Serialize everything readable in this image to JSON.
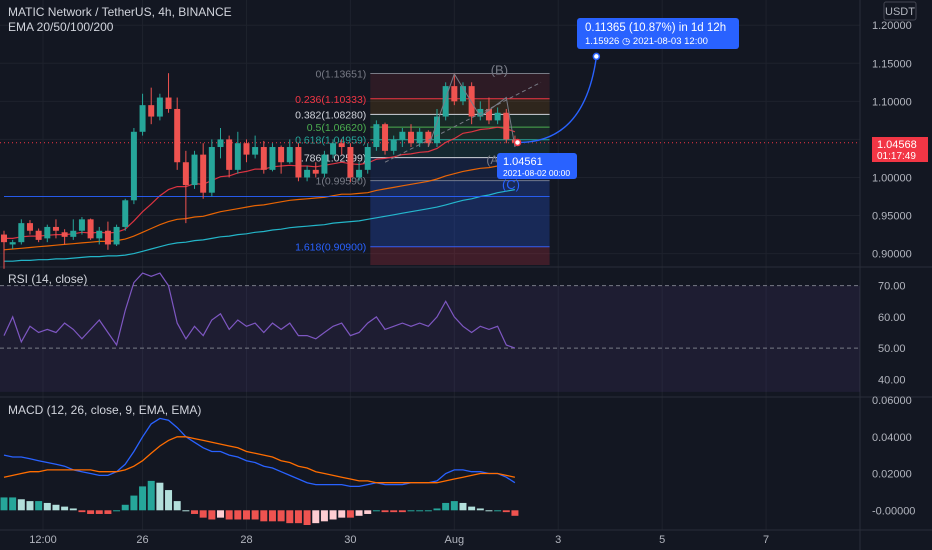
{
  "header": {
    "title": "MATIC Network / TetherUS, 4h, BINANCE",
    "indicator": "EMA 20/50/100/200"
  },
  "price_scale": {
    "currency": "USDT",
    "last_price": "1.04568",
    "countdown": "01:17:49"
  },
  "measure_box": {
    "line1": "0.11365 (10.87%) in 1d 12h",
    "line2": "1.15926 ◷ 2021-08-03  12:00"
  },
  "cursor_label": {
    "price": "1.04561",
    "time": "2021-08-02 00:00"
  },
  "wave_labels": {
    "b": "(B)",
    "c": "(C)",
    "a": "(A"
  },
  "fib_levels": [
    {
      "label": "0(1.13651)",
      "value": 1.13651,
      "color": "#787b86"
    },
    {
      "label": "0.236(1.10333)",
      "value": 1.10333,
      "color": "#f23645"
    },
    {
      "label": "0.382(1.08280)",
      "value": 1.0828,
      "color": "#d1d4dc"
    },
    {
      "label": "0.5(1.06620)",
      "value": 1.0662,
      "color": "#4caf50"
    },
    {
      "label": "0.618(1.04959)",
      "value": 1.04959,
      "color": "#26a69a"
    },
    {
      "label": "0.786(1.02599)",
      "value": 1.02599,
      "color": "#d1d4dc"
    },
    {
      "label": "1(0.99590)",
      "value": 0.9959,
      "color": "#787b86"
    },
    {
      "label": "1.618(0.90900)",
      "value": 0.909,
      "color": "#2962ff"
    }
  ],
  "rsi_panel": {
    "label": "RSI (14, close)",
    "ticks": [
      "70.00",
      "60.00",
      "50.00",
      "40.00"
    ]
  },
  "macd_panel": {
    "label": "MACD (12, 26, close, 9, EMA, EMA)",
    "ticks": [
      "0.06000",
      "0.04000",
      "0.02000",
      "-0.00000"
    ]
  },
  "time_axis": {
    "labels": [
      "12:00",
      "26",
      "28",
      "30",
      "Aug",
      "3",
      "5",
      "7"
    ]
  },
  "colors": {
    "background": "#131722",
    "up": "#26a69a",
    "down": "#ef5350",
    "ema20": "#f23645",
    "ema50": "#ff6d00",
    "ema100": "#26c6da",
    "ema200": "#2962ff",
    "rsi": "#7e57c2",
    "macd": "#2962ff",
    "signal": "#ff6d00"
  },
  "chart_data": {
    "type": "line",
    "title": "MATIC Network / TetherUS, 4h, BINANCE",
    "ylim": [
      0.885,
      1.22
    ],
    "y_ticks": [
      0.9,
      0.95,
      1.0,
      1.05,
      1.1,
      1.15,
      1.2
    ],
    "x_tick_labels": [
      "12:00",
      "26",
      "28",
      "30",
      "Aug",
      "3",
      "5",
      "7"
    ],
    "x_tick_bars": [
      4.5,
      16,
      28,
      40,
      52,
      64,
      76,
      88
    ],
    "candles": [
      [
        0.925,
        0.915,
        0.93,
        0.88
      ],
      [
        0.912,
        0.915,
        0.918,
        0.906
      ],
      [
        0.915,
        0.94,
        0.945,
        0.912
      ],
      [
        0.94,
        0.93,
        0.944,
        0.925
      ],
      [
        0.93,
        0.918,
        0.933,
        0.915
      ],
      [
        0.92,
        0.935,
        0.938,
        0.915
      ],
      [
        0.935,
        0.93,
        0.945,
        0.92
      ],
      [
        0.928,
        0.922,
        0.932,
        0.912
      ],
      [
        0.922,
        0.93,
        0.945,
        0.918
      ],
      [
        0.93,
        0.945,
        0.948,
        0.925
      ],
      [
        0.945,
        0.92,
        0.946,
        0.918
      ],
      [
        0.92,
        0.93,
        0.935,
        0.912
      ],
      [
        0.93,
        0.912,
        0.942,
        0.905
      ],
      [
        0.912,
        0.935,
        0.938,
        0.91
      ],
      [
        0.935,
        0.97,
        0.972,
        0.93
      ],
      [
        0.97,
        1.06,
        1.065,
        0.965
      ],
      [
        1.06,
        1.095,
        1.11,
        1.055
      ],
      [
        1.095,
        1.08,
        1.118,
        1.07
      ],
      [
        1.08,
        1.105,
        1.11,
        1.075
      ],
      [
        1.105,
        1.09,
        1.137,
        1.085
      ],
      [
        1.09,
        1.02,
        1.105,
        1.01
      ],
      [
        1.02,
        0.99,
        1.035,
        0.94
      ],
      [
        0.99,
        1.03,
        1.035,
        0.985
      ],
      [
        1.03,
        0.98,
        1.045,
        0.972
      ],
      [
        0.98,
        1.04,
        1.05,
        0.975
      ],
      [
        1.04,
        1.05,
        1.065,
        1.025
      ],
      [
        1.05,
        1.01,
        1.055,
        1.0
      ],
      [
        1.01,
        1.045,
        1.06,
        1.005
      ],
      [
        1.045,
        1.03,
        1.05,
        1.02
      ],
      [
        1.03,
        1.04,
        1.055,
        1.025
      ],
      [
        1.04,
        1.01,
        1.048,
        1.005
      ],
      [
        1.01,
        1.04,
        1.045,
        1.008
      ],
      [
        1.04,
        1.02,
        1.042,
        1.005
      ],
      [
        1.02,
        1.04,
        1.05,
        1.018
      ],
      [
        1.04,
        1.0,
        1.045,
        0.995
      ],
      [
        1.0,
        1.01,
        1.015,
        0.995
      ],
      [
        1.01,
        1.005,
        1.02,
        1.0
      ],
      [
        1.005,
        1.03,
        1.035,
        1.0
      ],
      [
        1.03,
        1.045,
        1.05,
        1.025
      ],
      [
        1.045,
        1.04,
        1.05,
        1.03
      ],
      [
        1.04,
        1.0,
        1.045,
        0.994
      ],
      [
        1.0,
        1.01,
        1.02,
        0.996
      ],
      [
        1.01,
        1.04,
        1.045,
        1.005
      ],
      [
        1.04,
        1.07,
        1.075,
        1.035
      ],
      [
        1.07,
        1.035,
        1.072,
        1.03
      ],
      [
        1.035,
        1.05,
        1.055,
        1.03
      ],
      [
        1.05,
        1.06,
        1.065,
        1.04
      ],
      [
        1.06,
        1.045,
        1.07,
        1.04
      ],
      [
        1.045,
        1.06,
        1.065,
        1.04
      ],
      [
        1.06,
        1.045,
        1.062,
        1.04
      ],
      [
        1.045,
        1.08,
        1.09,
        1.04
      ],
      [
        1.08,
        1.12,
        1.125,
        1.075
      ],
      [
        1.12,
        1.1,
        1.137,
        1.095
      ],
      [
        1.1,
        1.12,
        1.125,
        1.095
      ],
      [
        1.12,
        1.08,
        1.125,
        1.07
      ],
      [
        1.08,
        1.09,
        1.1,
        1.075
      ],
      [
        1.09,
        1.075,
        1.105,
        1.07
      ],
      [
        1.075,
        1.085,
        1.092,
        1.07
      ],
      [
        1.085,
        1.05,
        1.09,
        1.045
      ],
      [
        1.05,
        1.04568,
        1.055,
        1.04
      ]
    ],
    "series": [
      {
        "name": "EMA 20",
        "values": [
          0.92,
          0.92,
          0.922,
          0.923,
          0.923,
          0.924,
          0.925,
          0.925,
          0.926,
          0.928,
          0.927,
          0.928,
          0.927,
          0.928,
          0.932,
          0.943,
          0.955,
          0.965,
          0.976,
          0.984,
          0.988,
          0.988,
          0.992,
          0.991,
          0.996,
          1.001,
          1.002,
          1.006,
          1.008,
          1.011,
          1.011,
          1.014,
          1.015,
          1.016,
          1.015,
          1.015,
          1.014,
          1.016,
          1.018,
          1.02,
          1.018,
          1.017,
          1.019,
          1.024,
          1.025,
          1.027,
          1.03,
          1.031,
          1.033,
          1.034,
          1.038,
          1.046,
          1.051,
          1.058,
          1.06,
          1.063,
          1.064,
          1.066,
          1.064,
          1.06
        ]
      },
      {
        "name": "EMA 50",
        "values": [
          0.905,
          0.906,
          0.907,
          0.908,
          0.909,
          0.91,
          0.911,
          0.912,
          0.913,
          0.914,
          0.915,
          0.916,
          0.916,
          0.917,
          0.919,
          0.923,
          0.928,
          0.933,
          0.938,
          0.942,
          0.945,
          0.946,
          0.948,
          0.949,
          0.952,
          0.955,
          0.957,
          0.959,
          0.961,
          0.963,
          0.964,
          0.966,
          0.968,
          0.97,
          0.971,
          0.972,
          0.973,
          0.974,
          0.976,
          0.978,
          0.978,
          0.979,
          0.98,
          0.983,
          0.985,
          0.987,
          0.989,
          0.991,
          0.993,
          0.995,
          0.998,
          1.002,
          1.005,
          1.008,
          1.01,
          1.012,
          1.013,
          1.015,
          1.015,
          1.016
        ]
      },
      {
        "name": "EMA 100",
        "values": [
          0.89,
          0.89,
          0.891,
          0.891,
          0.892,
          0.892,
          0.893,
          0.893,
          0.894,
          0.895,
          0.896,
          0.896,
          0.897,
          0.897,
          0.898,
          0.9,
          0.903,
          0.906,
          0.909,
          0.912,
          0.914,
          0.915,
          0.917,
          0.918,
          0.92,
          0.922,
          0.923,
          0.925,
          0.926,
          0.928,
          0.929,
          0.931,
          0.932,
          0.934,
          0.935,
          0.936,
          0.937,
          0.938,
          0.94,
          0.941,
          0.942,
          0.943,
          0.945,
          0.947,
          0.949,
          0.951,
          0.953,
          0.955,
          0.957,
          0.959,
          0.961,
          0.964,
          0.967,
          0.97,
          0.972,
          0.975,
          0.977,
          0.98,
          0.982,
          0.984
        ]
      },
      {
        "name": "EMA 200",
        "values": [
          0.975,
          0.975,
          0.975,
          0.975,
          0.975,
          0.975,
          0.975,
          0.975,
          0.975,
          0.975,
          0.975,
          0.975,
          0.975,
          0.975,
          0.975,
          0.975,
          0.975,
          0.975,
          0.975,
          0.975,
          0.975,
          0.975,
          0.975,
          0.975,
          0.975,
          0.975,
          0.975,
          0.975,
          0.975,
          0.975,
          0.975,
          0.975,
          0.975,
          0.975,
          0.975,
          0.975,
          0.975,
          0.975,
          0.975,
          0.975,
          0.975,
          0.975,
          0.975,
          0.975,
          0.975,
          0.975,
          0.975,
          0.975,
          0.975,
          0.975,
          0.975,
          0.975,
          0.975,
          0.975,
          0.975,
          0.975,
          0.975,
          0.975,
          0.975,
          0.975
        ]
      }
    ],
    "rsi": {
      "ylim": [
        35,
        75
      ],
      "values": [
        54,
        60,
        52,
        57,
        55,
        56,
        55,
        58,
        56,
        53,
        56,
        59,
        55,
        51,
        62,
        71,
        74,
        73,
        74,
        70,
        58,
        53,
        57,
        54,
        59,
        61,
        56,
        59,
        57,
        58,
        55,
        58,
        56,
        58,
        54,
        54,
        53,
        55,
        57,
        58,
        54,
        55,
        58,
        60,
        56,
        57,
        58,
        57,
        58,
        57,
        60,
        65,
        60,
        57,
        55,
        57,
        56,
        57,
        51,
        50
      ]
    },
    "macd": {
      "ylim": [
        -0.008,
        0.06
      ],
      "macd": [
        0.03,
        0.029,
        0.029,
        0.028,
        0.027,
        0.026,
        0.025,
        0.024,
        0.022,
        0.021,
        0.02,
        0.019,
        0.019,
        0.021,
        0.025,
        0.032,
        0.04,
        0.047,
        0.05,
        0.049,
        0.045,
        0.04,
        0.037,
        0.034,
        0.032,
        0.032,
        0.03,
        0.029,
        0.027,
        0.026,
        0.024,
        0.023,
        0.021,
        0.019,
        0.017,
        0.015,
        0.014,
        0.014,
        0.014,
        0.014,
        0.013,
        0.013,
        0.014,
        0.015,
        0.014,
        0.014,
        0.014,
        0.015,
        0.015,
        0.015,
        0.016,
        0.02,
        0.022,
        0.022,
        0.021,
        0.021,
        0.02,
        0.02,
        0.018,
        0.015
      ],
      "signal": [
        0.018,
        0.019,
        0.02,
        0.021,
        0.021,
        0.022,
        0.022,
        0.022,
        0.022,
        0.022,
        0.022,
        0.021,
        0.021,
        0.021,
        0.022,
        0.024,
        0.027,
        0.031,
        0.035,
        0.038,
        0.04,
        0.04,
        0.039,
        0.038,
        0.037,
        0.036,
        0.035,
        0.034,
        0.032,
        0.031,
        0.03,
        0.029,
        0.027,
        0.026,
        0.024,
        0.023,
        0.021,
        0.02,
        0.019,
        0.018,
        0.017,
        0.016,
        0.016,
        0.015,
        0.015,
        0.015,
        0.015,
        0.015,
        0.015,
        0.015,
        0.015,
        0.016,
        0.017,
        0.018,
        0.019,
        0.02,
        0.02,
        0.02,
        0.019,
        0.018
      ],
      "histogram": [
        0.007,
        0.007,
        0.006,
        0.005,
        0.005,
        0.004,
        0.003,
        0.002,
        0.001,
        -0.001,
        -0.002,
        -0.002,
        -0.002,
        0.0,
        0.003,
        0.008,
        0.013,
        0.016,
        0.015,
        0.011,
        0.005,
        0.0,
        -0.002,
        -0.004,
        -0.005,
        -0.004,
        -0.005,
        -0.005,
        -0.005,
        -0.005,
        -0.006,
        -0.006,
        -0.006,
        -0.007,
        -0.007,
        -0.008,
        -0.007,
        -0.006,
        -0.005,
        -0.004,
        -0.004,
        -0.003,
        -0.002,
        0.0,
        -0.001,
        -0.001,
        -0.001,
        0.0,
        0.0,
        0.0,
        0.001,
        0.004,
        0.005,
        0.004,
        0.002,
        0.001,
        0.0,
        0.0,
        -0.001,
        -0.003
      ]
    }
  }
}
